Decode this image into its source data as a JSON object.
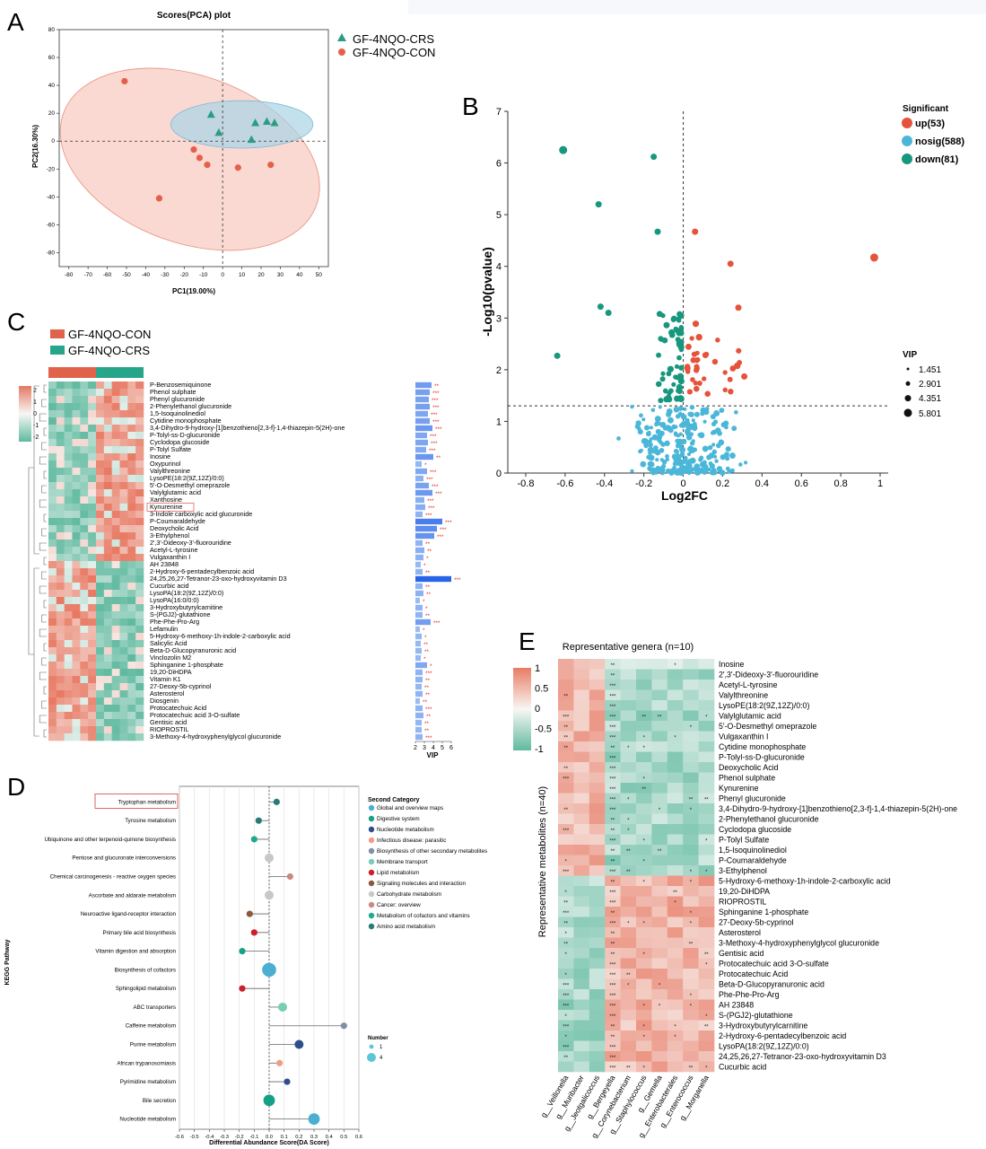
{
  "panel_labels": {
    "a": "A",
    "b": "B",
    "c": "C",
    "d": "D",
    "e": "E"
  },
  "chart_data": [
    {
      "id": "A",
      "type": "scatter",
      "title": "Scores(PCA) plot",
      "xlabel": "PC1(19.00%)",
      "ylabel": "PC2(16.30%)",
      "xlim": [
        -85,
        55
      ],
      "ylim": [
        -90,
        80
      ],
      "xticks": [
        -80,
        -70,
        -60,
        -50,
        -40,
        -30,
        -20,
        -10,
        0,
        10,
        20,
        30,
        40,
        50
      ],
      "yticks": [
        -80,
        -60,
        -40,
        -20,
        0,
        20,
        40,
        60,
        80
      ],
      "legend_position": "top-right",
      "series": [
        {
          "name": "GF-4NQO-CRS",
          "color": "#2a9d85",
          "marker": "triangle",
          "points": [
            [
              -6,
              19
            ],
            [
              -2,
              6
            ],
            [
              17,
              13
            ],
            [
              15,
              1
            ],
            [
              23,
              14
            ],
            [
              27,
              13
            ]
          ]
        },
        {
          "name": "GF-4NQO-CON",
          "color": "#e5604a",
          "marker": "circle",
          "points": [
            [
              -51,
              43
            ],
            [
              -15,
              -6
            ],
            [
              -12,
              -12
            ],
            [
              -8,
              -17
            ],
            [
              8,
              -19
            ],
            [
              25,
              -17
            ],
            [
              -33,
              -41
            ]
          ]
        }
      ]
    },
    {
      "id": "B",
      "type": "scatter",
      "xlabel": "Log2FC",
      "ylabel": "-Log10(pvalue)",
      "xlim": [
        -0.85,
        1.05
      ],
      "ylim": [
        0,
        7
      ],
      "xticks": [
        -0.8,
        -0.6,
        -0.4,
        -0.2,
        0,
        0.2,
        0.4,
        0.6,
        0.8,
        1
      ],
      "yticks": [
        0,
        1,
        2,
        3,
        4,
        5,
        6,
        7
      ],
      "threshold_y": 1.3,
      "legend_position": "right",
      "legend_title": "Significant",
      "groups": [
        {
          "name": "up(53)",
          "color": "#e5533a"
        },
        {
          "name": "nosig(588)",
          "color": "#4bb7d8"
        },
        {
          "name": "down(81)",
          "color": "#17977d"
        }
      ],
      "vip_title": "VIP",
      "vip_levels": [
        "1.451",
        "2.901",
        "4.351",
        "5.801"
      ],
      "labeled_points": [
        {
          "x": -0.61,
          "y": 6.25,
          "g": "down"
        },
        {
          "x": -0.15,
          "y": 6.12,
          "g": "down"
        },
        {
          "x": -0.43,
          "y": 5.2,
          "g": "down"
        },
        {
          "x": -0.13,
          "y": 4.67,
          "g": "down"
        },
        {
          "x": 0.97,
          "y": 4.17,
          "g": "up"
        },
        {
          "x": 0.24,
          "y": 4.05,
          "g": "up"
        },
        {
          "x": 0.06,
          "y": 4.67,
          "g": "up"
        },
        {
          "x": -0.64,
          "y": 2.27,
          "g": "down"
        },
        {
          "x": -0.38,
          "y": 3.1,
          "g": "down"
        },
        {
          "x": -0.42,
          "y": 3.22,
          "g": "down"
        },
        {
          "x": 0.28,
          "y": 3.2,
          "g": "up"
        },
        {
          "x": 0.31,
          "y": 1.87,
          "g": "up"
        }
      ]
    },
    {
      "id": "C",
      "type": "heatmap",
      "legend": [
        {
          "name": "GF-4NQO-CON",
          "color": "#e0624a"
        },
        {
          "name": "GF-4NQO-CRS",
          "color": "#27a58a"
        }
      ],
      "colorbar_ticks": [
        "2",
        "1",
        "0",
        "-1",
        "-2"
      ],
      "vip_xlabel": "VIP",
      "vip_xticks": [
        "2",
        "3",
        "4",
        "5",
        "6"
      ],
      "rows": [
        "P-Benzosemiquinone",
        "Phenol sulphate",
        "Phenyl glucuronide",
        "2-Phenylethanol glucuronide",
        "1,5-Isoquinolinediol",
        "Cytidine monophosphate",
        "3,4-Dihydro-9-hydroxy-[1]benzothieno[2,3-f]-1,4-thiazepin-5(2H)-one",
        "P-Tolyl-ss-D-glucuronide",
        "Cyclodopa glucoside",
        "P-Tolyl Sulfate",
        "Inosine",
        "Oxypurinol",
        "Valylthreonine",
        "LysoPE(18:2(9Z,12Z)/0:0)",
        "5'-O-Desmethyl omeprazole",
        "Valylglutamic acid",
        "Xanthosine",
        "Kynurenine",
        "3-Indole carboxylic acid glucuronide",
        "P-Coumaraldehyde",
        "Deoxycholic Acid",
        "3-Ethylphenol",
        "2',3'-Dideoxy-3'-fluorouridine",
        "Acetyl-L-tyrosine",
        "Vulgaxanthin I",
        "AH 23848",
        "2-Hydroxy-6-pentadecylbenzoic acid",
        "24,25,26,27-Tetranor-23-oxo-hydroxyvitamin D3",
        "Cucurbic acid",
        "LysoPA(18:2(9Z,12Z)/0:0)",
        "LysoPA(16:0/0:0)",
        "3-Hydroxybutyrylcarnitine",
        "S-(PGJ2)-glutathione",
        "Phe-Phe-Pro-Arg",
        "Lefamulin",
        "5-Hydroxy-6-methoxy-1h-indole-2-carboxylic acid",
        "Salicylic Acid",
        "Beta-D-Glucopyranuronic acid",
        "Vinclozolin M2",
        "Sphinganine 1-phosphate",
        "19,20-DiHDPA",
        "Vitamin K1",
        "27-Deoxy-5b-cyprinol",
        "Asterosterol",
        "Diosgenin",
        "Protocatechuic Acid",
        "Protocatechuic acid 3-O-sulfate",
        "Gentisic acid",
        "RIOPROSTIL",
        "3-Methoxy-4-hydroxyphenylglycol glucuronide"
      ],
      "vip": [
        3.8,
        3.6,
        3.5,
        3.6,
        3.4,
        3.6,
        3.9,
        3.3,
        3.4,
        3.2,
        4.0,
        2.7,
        3.3,
        2.9,
        3.5,
        3.9,
        3.0,
        3.1,
        2.8,
        5.0,
        4.4,
        4.1,
        2.8,
        3.0,
        2.9,
        2.6,
        2.8,
        6.0,
        2.8,
        2.9,
        2.5,
        2.8,
        2.8,
        3.7,
        2.5,
        2.7,
        2.6,
        2.7,
        2.6,
        3.3,
        2.8,
        2.8,
        2.7,
        2.8,
        2.5,
        2.8,
        2.9,
        2.7,
        2.7,
        2.8
      ],
      "sig": [
        "**",
        "***",
        "***",
        "***",
        "***",
        "***",
        "***",
        "***",
        "***",
        "***",
        "**",
        "*",
        "***",
        "***",
        "***",
        "***",
        "***",
        "***",
        "***",
        "***",
        "***",
        "***",
        "**",
        "**",
        "*",
        "*",
        "**",
        "***",
        "**",
        "**",
        "*",
        "*",
        "**",
        "***",
        "*",
        "*",
        "**",
        "**",
        "*",
        "*",
        "***",
        "**",
        "**",
        "**",
        "**",
        "***",
        "**",
        "**",
        "**",
        "***"
      ],
      "highlighted_row": "Kynurenine"
    },
    {
      "id": "D",
      "type": "scatter",
      "xlabel": "Differential Abundance Score(DA Score)",
      "ylabel": "KEGG Pathway",
      "xlim": [
        -0.6,
        0.6
      ],
      "xticks": [
        "-0.6",
        "-0.5",
        "-0.4",
        "-0.3",
        "-0.2",
        "-0.1",
        "0.0",
        "0.1",
        "0.2",
        "0.3",
        "0.4",
        "0.5",
        "0.6"
      ],
      "legend_title": "Second Category",
      "categories": [
        {
          "name": "Global and overview maps",
          "color": "#4aafd0"
        },
        {
          "name": "Digestive system",
          "color": "#16a085"
        },
        {
          "name": "Nucleotide metabolism",
          "color": "#2c4f8c"
        },
        {
          "name": "Infectious disease: parasitic",
          "color": "#f29c86"
        },
        {
          "name": "Biosynthesis of other secondary metabolites",
          "color": "#7f8fa6"
        },
        {
          "name": "Membrane transport",
          "color": "#76cfb4"
        },
        {
          "name": "Lipid metabolism",
          "color": "#cc1f2a"
        },
        {
          "name": "Signaling molecules and interaction",
          "color": "#8b5a3c"
        },
        {
          "name": "Carbohydrate metabolism",
          "color": "#c8c8c8"
        },
        {
          "name": "Cancer: overview",
          "color": "#c98a7e"
        },
        {
          "name": "Metabolism of cofactors and vitamins",
          "color": "#20a98c"
        },
        {
          "name": "Amino acid metabolism",
          "color": "#2a7a78"
        }
      ],
      "size_title": "Number",
      "size_levels": [
        "1",
        "4"
      ],
      "pathways": [
        {
          "name": "Tryptophan metabolism",
          "da": 0.05,
          "n": 1,
          "cat": 11
        },
        {
          "name": "Tyrosine metabolism",
          "da": -0.07,
          "n": 1,
          "cat": 11
        },
        {
          "name": "Ubiquinone and other terpenoid-quinone biosynthesis",
          "da": -0.1,
          "n": 1,
          "cat": 10
        },
        {
          "name": "Pentose and glucuronate interconversions",
          "da": 0.0,
          "n": 2,
          "cat": 8
        },
        {
          "name": "Chemical carcinogenesis - reactive oxygen species",
          "da": 0.14,
          "n": 1,
          "cat": 9
        },
        {
          "name": "Ascorbate and aldarate metabolism",
          "da": 0.0,
          "n": 2,
          "cat": 8
        },
        {
          "name": "Neuroactive ligand-receptor interaction",
          "da": -0.13,
          "n": 1,
          "cat": 7
        },
        {
          "name": "Primary bile acid biosynthesis",
          "da": -0.1,
          "n": 1,
          "cat": 6
        },
        {
          "name": "Vitamin digestion and absorption",
          "da": -0.18,
          "n": 1,
          "cat": 1
        },
        {
          "name": "Biosynthesis of cofactors",
          "da": 0.0,
          "n": 4,
          "cat": 0
        },
        {
          "name": "Sphingolipid metabolism",
          "da": -0.18,
          "n": 1,
          "cat": 6
        },
        {
          "name": "ABC transporters",
          "da": 0.09,
          "n": 2,
          "cat": 5
        },
        {
          "name": "Caffeine metabolism",
          "da": 0.5,
          "n": 1,
          "cat": 4
        },
        {
          "name": "Purine metabolism",
          "da": 0.2,
          "n": 2,
          "cat": 2
        },
        {
          "name": "African trypanosomiasis",
          "da": 0.07,
          "n": 1,
          "cat": 3
        },
        {
          "name": "Pyrimidine metabolism",
          "da": 0.12,
          "n": 1,
          "cat": 2
        },
        {
          "name": "Bile secretion",
          "da": 0.0,
          "n": 3,
          "cat": 1
        },
        {
          "name": "Nucleotide metabolism",
          "da": 0.3,
          "n": 3,
          "cat": 0
        }
      ],
      "highlighted": "Tryptophan metabolism"
    },
    {
      "id": "E",
      "type": "heatmap",
      "title": "Representative genera (n=10)",
      "ylabel": "Representative metabolites (n=40)",
      "colorbar_ticks": [
        "1",
        "0.5",
        "0",
        "-0.5",
        "-1"
      ],
      "columns": [
        "g__Veillonella",
        "g__Muribacter",
        "g__Jeotgalicoccus",
        "g__Bergeyella",
        "g__Corynebacterium",
        "g__Staphylococcus",
        "g__Gemella",
        "g__Enterobacterales",
        "g__Enterococcus",
        "g__Morganella"
      ],
      "rows": [
        "Inosine",
        "2',3'-Dideoxy-3'-fluorouridine",
        "Acetyl-L-tyrosine",
        "Valylthreonine",
        "LysoPE(18:2(9Z,12Z)/0:0)",
        "Valylglutamic acid",
        "5'-O-Desmethyl omeprazole",
        "Vulgaxanthin I",
        "Cytidine monophosphate",
        "P-Tolyl-ss-D-glucuronide",
        "Deoxycholic Acid",
        "Phenol sulphate",
        "Kynurenine",
        "Phenyl glucuronide",
        "3,4-Dihydro-9-hydroxy-[1]benzothieno[2,3-f]-1,4-thiazepin-5(2H)-one",
        "2-Phenylethanol glucuronide",
        "Cyclodopa glucoside",
        "P-Tolyl Sulfate",
        "1,5-Isoquinolinediol",
        "P-Coumaraldehyde",
        "3-Ethylphenol",
        "5-Hydroxy-6-methoxy-1h-indole-2-carboxylic acid",
        "19,20-DiHDPA",
        "RIOPROSTIL",
        "Sphinganine 1-phosphate",
        "27-Deoxy-5b-cyprinol",
        "Asterosterol",
        "3-Methoxy-4-hydroxyphenylglycol glucuronide",
        "Gentisic acid",
        "Protocatechuic acid 3-O-sulfate",
        "Protocatechuic Acid",
        "Beta-D-Glucopyranuronic acid",
        "Phe-Phe-Pro-Arg",
        "AH 23848",
        "S-(PGJ2)-glutathione",
        "3-Hydroxybutyrylcarnitine",
        "2-Hydroxy-6-pentadecylbenzoic acid",
        "LysoPA(18:2(9Z,12Z)/0:0)",
        "24,25,26,27-Tetranor-23-oxo-hydroxyvitamin D3",
        "Cucurbic acid"
      ],
      "block_split": 21
    }
  ]
}
